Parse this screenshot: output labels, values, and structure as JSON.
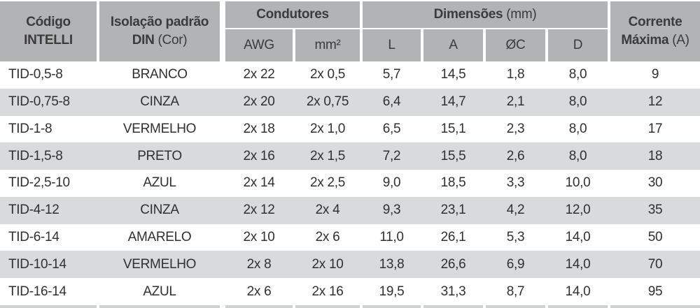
{
  "colors": {
    "header_bg": "#b2b3b4",
    "header_text": "#3b3b3b",
    "zebra_bg": "#d9dadb",
    "text": "#303030",
    "sliver_bg": "#cfd0d1",
    "gap": "#ffffff"
  },
  "header": {
    "codigo_line1": "Código",
    "codigo_line2": "INTELLI",
    "isolacao_line1": "Isolação padrão",
    "isolacao_line2_bold": "DIN",
    "isolacao_line2_normal": "(Cor)",
    "condutores": "Condutores",
    "dimensoes_bold": "Dimensões",
    "dimensoes_normal": "(mm)",
    "corrente_line1": "Corrente",
    "corrente_line2_bold": "Máxima",
    "corrente_line2_normal": "(A)",
    "sub_awg": "AWG",
    "sub_mm2": "mm²",
    "sub_l": "L",
    "sub_a": "A",
    "sub_oc": "ØC",
    "sub_d": "D"
  },
  "chart_data": {
    "type": "table",
    "columns": [
      "Código INTELLI",
      "Isolação padrão DIN (Cor)",
      "Condutores AWG",
      "Condutores mm²",
      "Dimensões L (mm)",
      "Dimensões A (mm)",
      "Dimensões ØC (mm)",
      "Dimensões D (mm)",
      "Corrente Máxima (A)"
    ],
    "rows": [
      [
        "TID-0,5-8",
        "BRANCO",
        "2x 22",
        "2x 0,5",
        "5,7",
        "14,5",
        "1,8",
        "8,0",
        "9"
      ],
      [
        "TID-0,75-8",
        "CINZA",
        "2x 20",
        "2x 0,75",
        "6,4",
        "14,7",
        "2,1",
        "8,0",
        "12"
      ],
      [
        "TID-1-8",
        "VERMELHO",
        "2x 18",
        "2x 1,0",
        "6,5",
        "15,1",
        "2,3",
        "8,0",
        "17"
      ],
      [
        "TID-1,5-8",
        "PRETO",
        "2x 16",
        "2x 1,5",
        "7,2",
        "15,5",
        "2,6",
        "8,0",
        "18"
      ],
      [
        "TID-2,5-10",
        "AZUL",
        "2x 14",
        "2x 2,5",
        "9,0",
        "18,5",
        "3,3",
        "10,0",
        "30"
      ],
      [
        "TID-4-12",
        "CINZA",
        "2x 12",
        "2x 4",
        "9,3",
        "23,1",
        "4,2",
        "12,0",
        "35"
      ],
      [
        "TID-6-14",
        "AMARELO",
        "2x 10",
        "2x 6",
        "11,0",
        "26,1",
        "5,3",
        "14,0",
        "50"
      ],
      [
        "TID-10-14",
        "VERMELHO",
        "2x 8",
        "2x 10",
        "13,8",
        "26,6",
        "6,9",
        "14,0",
        "70"
      ],
      [
        "TID-16-14",
        "AZUL",
        "2x 6",
        "2x 16",
        "19,5",
        "31,3",
        "8,7",
        "14,0",
        "95"
      ]
    ]
  }
}
